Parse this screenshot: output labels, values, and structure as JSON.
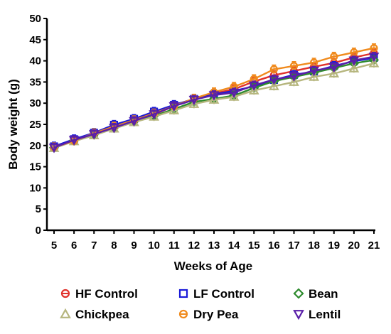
{
  "chart_data": {
    "type": "line",
    "xlabel": "Weeks of Age",
    "ylabel": "Body weight (g)",
    "xlim": [
      5,
      21
    ],
    "ylim": [
      0,
      50
    ],
    "x_ticks": [
      5,
      6,
      7,
      8,
      9,
      10,
      11,
      12,
      13,
      14,
      15,
      16,
      17,
      18,
      19,
      20,
      21
    ],
    "y_ticks": [
      0,
      5,
      10,
      15,
      20,
      25,
      30,
      35,
      40,
      45,
      50
    ],
    "x": [
      5,
      6,
      7,
      8,
      9,
      10,
      11,
      12,
      13,
      14,
      15,
      16,
      17,
      18,
      19,
      20,
      21
    ],
    "grid": false,
    "legend_position": "bottom",
    "series": [
      {
        "name": "HF Control",
        "color": "#e0312b",
        "marker": "circle",
        "values": [
          19.6,
          21.0,
          22.8,
          24.3,
          25.9,
          27.3,
          29.3,
          31.0,
          32.3,
          33.3,
          35.1,
          36.6,
          37.6,
          38.6,
          39.5,
          40.8,
          41.8
        ]
      },
      {
        "name": "LF Control",
        "color": "#1a1ad8",
        "marker": "square",
        "values": [
          19.8,
          21.5,
          23.0,
          24.9,
          26.3,
          28.0,
          29.6,
          31.0,
          32.1,
          32.9,
          34.0,
          35.5,
          36.7,
          37.5,
          38.8,
          39.9,
          40.7
        ]
      },
      {
        "name": "Bean",
        "color": "#2e8b2e",
        "marker": "diamond",
        "values": [
          19.5,
          21.2,
          22.6,
          24.2,
          25.7,
          27.0,
          28.6,
          30.3,
          31.0,
          31.8,
          33.6,
          35.2,
          36.2,
          37.2,
          38.3,
          39.4,
          40.2
        ]
      },
      {
        "name": "Chickpea",
        "color": "#b6b67e",
        "marker": "triangle-up",
        "values": [
          19.4,
          21.0,
          22.4,
          24.0,
          25.5,
          26.8,
          28.3,
          29.8,
          30.8,
          31.5,
          33.0,
          34.0,
          35.0,
          36.2,
          37.0,
          38.2,
          39.4
        ]
      },
      {
        "name": "Dry Pea",
        "color": "#f08a1c",
        "marker": "circle",
        "values": [
          19.6,
          21.1,
          22.9,
          24.5,
          26.0,
          27.6,
          29.3,
          31.1,
          32.6,
          33.9,
          35.7,
          38.0,
          38.8,
          39.6,
          41.0,
          42.0,
          43.0
        ]
      },
      {
        "name": "Lentil",
        "color": "#5a1fa8",
        "marker": "triangle-down",
        "values": [
          19.5,
          21.3,
          22.7,
          24.2,
          25.8,
          27.4,
          29.3,
          30.8,
          31.9,
          32.5,
          34.2,
          35.6,
          36.4,
          37.7,
          38.5,
          40.1,
          41.0
        ]
      }
    ]
  }
}
